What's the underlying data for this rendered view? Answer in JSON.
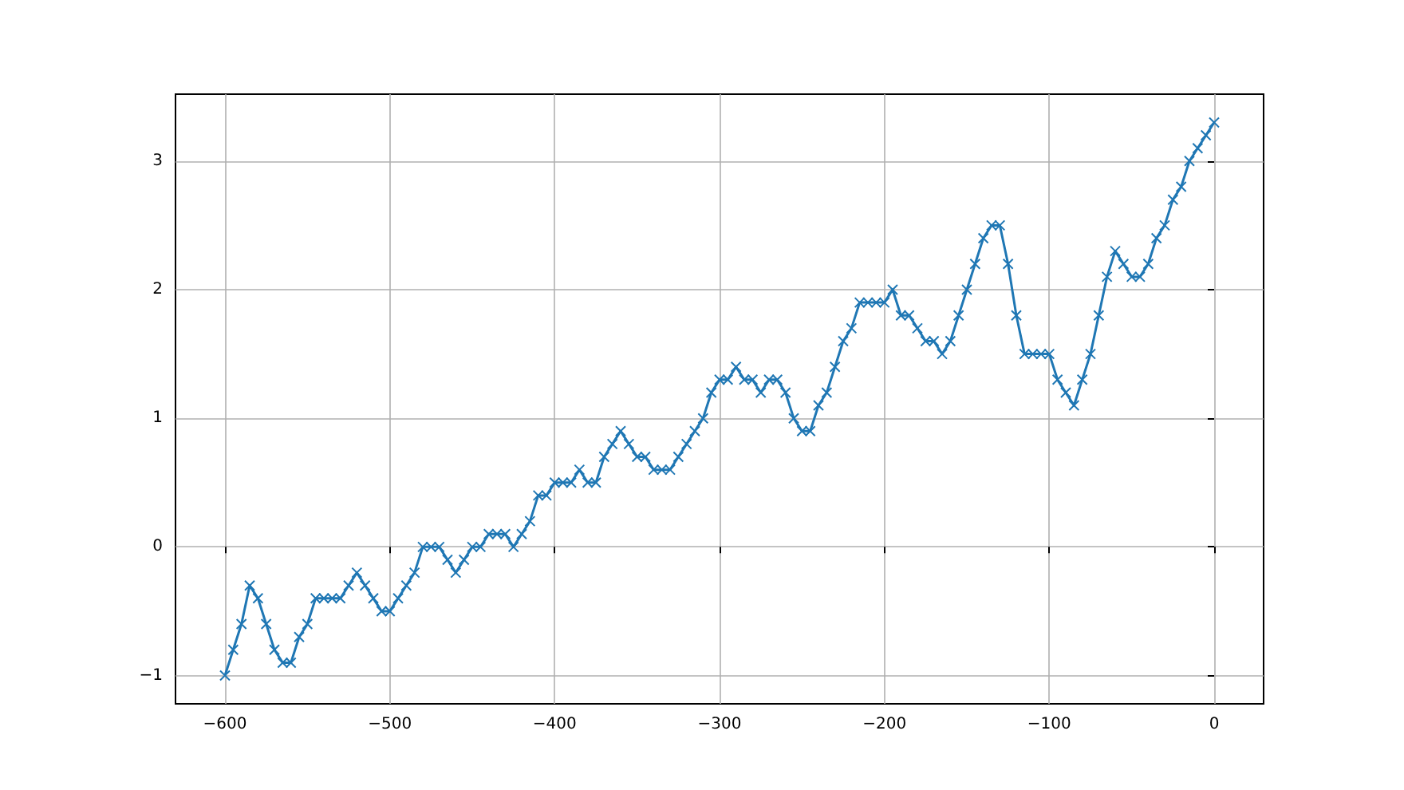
{
  "chart_data": {
    "type": "line",
    "marker": "cross",
    "grid": true,
    "x": [
      -600,
      -595,
      -590,
      -585,
      -580,
      -575,
      -570,
      -565,
      -560,
      -555,
      -550,
      -545,
      -540,
      -535,
      -530,
      -525,
      -520,
      -515,
      -510,
      -505,
      -500,
      -495,
      -490,
      -485,
      -480,
      -475,
      -470,
      -465,
      -460,
      -455,
      -450,
      -445,
      -440,
      -435,
      -430,
      -425,
      -420,
      -415,
      -410,
      -405,
      -400,
      -395,
      -390,
      -385,
      -380,
      -375,
      -370,
      -365,
      -360,
      -355,
      -350,
      -345,
      -340,
      -335,
      -330,
      -325,
      -320,
      -315,
      -310,
      -305,
      -300,
      -295,
      -290,
      -285,
      -280,
      -275,
      -270,
      -265,
      -260,
      -255,
      -250,
      -245,
      -240,
      -235,
      -230,
      -225,
      -220,
      -215,
      -210,
      -205,
      -200,
      -195,
      -190,
      -185,
      -180,
      -175,
      -170,
      -165,
      -160,
      -155,
      -150,
      -145,
      -140,
      -135,
      -130,
      -125,
      -120,
      -115,
      -110,
      -105,
      -100,
      -95,
      -90,
      -85,
      -80,
      -75,
      -70,
      -65,
      -60,
      -55,
      -50,
      -45,
      -40,
      -35,
      -30,
      -25,
      -20,
      -15,
      -10,
      -5,
      0
    ],
    "series": [
      {
        "color": "#1f77b4",
        "values": [
          -1.0,
          -0.8,
          -0.6,
          -0.3,
          -0.4,
          -0.6,
          -0.8,
          -0.9,
          -0.9,
          -0.7,
          -0.6,
          -0.4,
          -0.4,
          -0.4,
          -0.4,
          -0.3,
          -0.2,
          -0.3,
          -0.4,
          -0.5,
          -0.5,
          -0.4,
          -0.3,
          -0.2,
          0,
          0,
          0,
          -0.1,
          -0.2,
          -0.1,
          0,
          0,
          0.1,
          0.1,
          0.1,
          0,
          0.1,
          0.2,
          0.4,
          0.4,
          0.5,
          0.5,
          0.5,
          0.6,
          0.5,
          0.5,
          0.7,
          0.8,
          0.9,
          0.8,
          0.7,
          0.7,
          0.6,
          0.6,
          0.6,
          0.7,
          0.8,
          0.9,
          1.0,
          1.2,
          1.3,
          1.3,
          1.4,
          1.3,
          1.3,
          1.2,
          1.3,
          1.3,
          1.2,
          1.0,
          0.9,
          0.9,
          1.1,
          1.2,
          1.4,
          1.6,
          1.7,
          1.9,
          1.9,
          1.9,
          1.9,
          2.0,
          1.8,
          1.8,
          1.7,
          1.6,
          1.6,
          1.5,
          1.6,
          1.8,
          2.0,
          2.2,
          2.4,
          2.5,
          2.5,
          2.2,
          1.8,
          1.5,
          1.5,
          1.5,
          1.5,
          1.3,
          1.2,
          1.1,
          1.3,
          1.5,
          1.8,
          2.1,
          2.3,
          2.2,
          2.1,
          2.1,
          2.2,
          2.4,
          2.5,
          2.7,
          2.8,
          3.0,
          3.1,
          3.2,
          3.3
        ]
      }
    ],
    "xlim": [
      -630,
      30
    ],
    "xticks": [
      -600,
      -500,
      -400,
      -300,
      -200,
      -100,
      0
    ],
    "ylim": [
      -1.22,
      3.52
    ],
    "yticks": [
      -1,
      0,
      1,
      2,
      3
    ]
  }
}
